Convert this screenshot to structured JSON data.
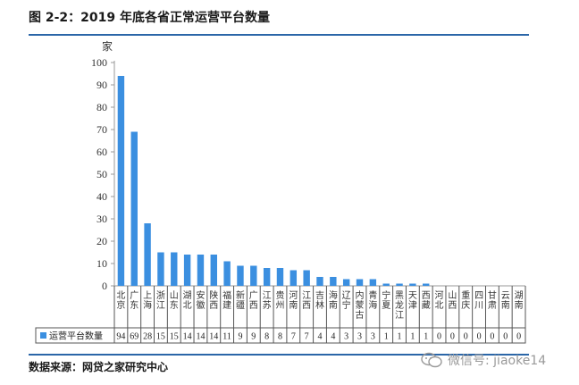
{
  "header": {
    "title": "图 2-2：2019 年底各省正常运营平台数量"
  },
  "footer": {
    "source": "数据来源：网贷之家研究中心",
    "watermark": "微信号: jiaoke14"
  },
  "colors": {
    "bar": "#3b8fe0",
    "rule": "#2b66a8"
  },
  "chart_data": {
    "type": "bar",
    "title": "",
    "ylabel": "家",
    "xlabel": "",
    "ylim": [
      0,
      100
    ],
    "yticks": [
      0,
      10,
      20,
      30,
      40,
      50,
      60,
      70,
      80,
      90,
      100
    ],
    "grid": false,
    "legend_position": "data-table-left",
    "categories": [
      "北京",
      "广东",
      "上海",
      "浙江",
      "山东",
      "湖北",
      "安徽",
      "陕西",
      "福建",
      "新疆",
      "广西",
      "江苏",
      "贵州",
      "河南",
      "江西",
      "吉林",
      "海南",
      "辽宁",
      "内蒙古",
      "青海",
      "宁夏",
      "黑龙江",
      "天津",
      "西藏",
      "河北",
      "山西",
      "重庆",
      "四川",
      "甘肃",
      "云南",
      "湖南"
    ],
    "series": [
      {
        "name": "运营平台数量",
        "values": [
          94,
          69,
          28,
          15,
          15,
          14,
          14,
          14,
          11,
          9,
          9,
          8,
          8,
          7,
          7,
          4,
          4,
          3,
          3,
          3,
          1,
          1,
          1,
          1,
          0,
          0,
          0,
          0,
          0,
          0,
          0
        ]
      }
    ]
  }
}
